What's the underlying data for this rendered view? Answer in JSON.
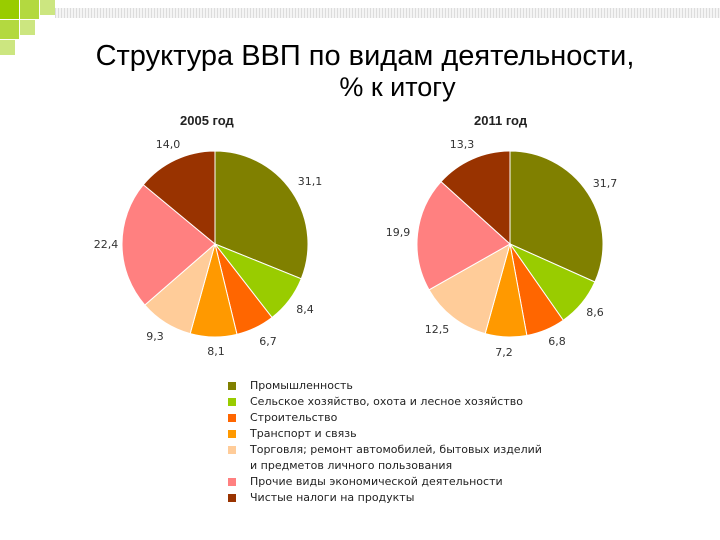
{
  "title_line1": "Структура ВВП по видам деятельности,",
  "title_line2": "% к итогу",
  "chart_data": {
    "type": "pie",
    "categories": [
      "Промышленность",
      "Сельское хозяйство, охота и лесное хозяйство",
      "Строительство",
      "Транспорт и связь",
      "Торговля; ремонт автомобилей, бытовых изделий\nи предметов личного пользования",
      "Прочие виды экономической деятельности",
      "Чистые налоги на продукты"
    ],
    "colors": [
      "#808000",
      "#99CC00",
      "#FF6600",
      "#FF9900",
      "#FFCC99",
      "#FF8080",
      "#993300"
    ],
    "series": [
      {
        "name": "2005 год",
        "values": [
          31.1,
          8.4,
          6.7,
          8.1,
          9.3,
          22.4,
          14.0
        ]
      },
      {
        "name": "2011 год",
        "values": [
          31.7,
          8.6,
          6.8,
          7.2,
          12.5,
          19.9,
          13.3
        ]
      }
    ],
    "legend_position": "bottom"
  }
}
